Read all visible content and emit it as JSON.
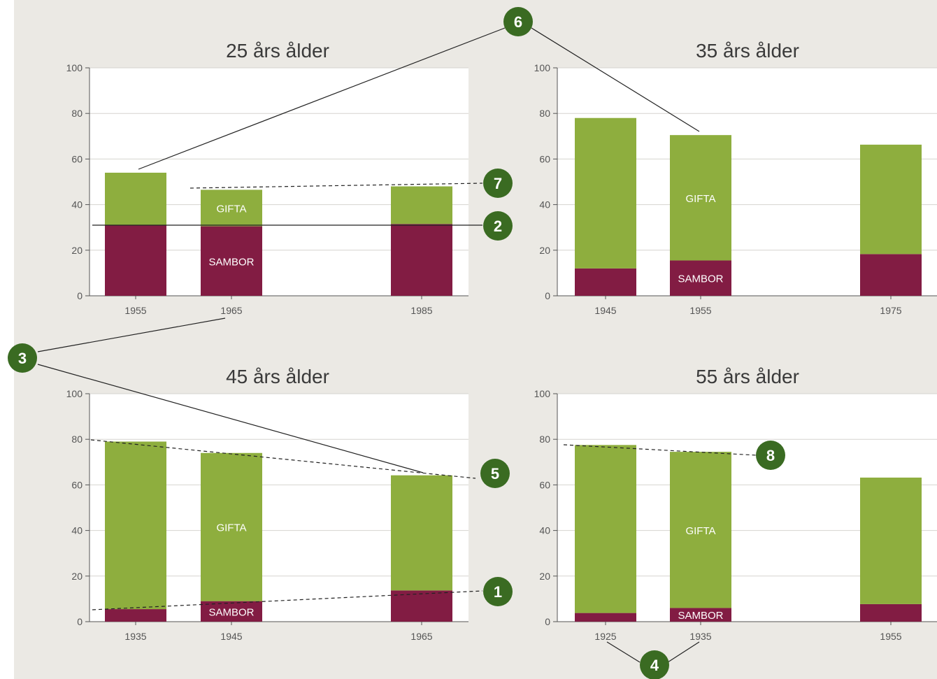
{
  "colors": {
    "background": "#ebe9e4",
    "married": "#8eae3e",
    "cohabiting": "#821c43",
    "badge": "#3a6b22"
  },
  "bar_labels": {
    "married": "GIFTA",
    "cohabiting": "SAMBOR"
  },
  "chart_data": [
    {
      "type": "bar",
      "stacked": true,
      "title": "25 års ålder",
      "categories": [
        "1955",
        "1965",
        "1985"
      ],
      "ylim": [
        0,
        100
      ],
      "yticks": [
        "0",
        "20",
        "40",
        "60",
        "80",
        "100"
      ],
      "grid": true,
      "series": [
        {
          "name": "SAMBOR",
          "values": [
            31,
            30.5,
            31.5
          ]
        },
        {
          "name": "GIFTA",
          "values": [
            23,
            16,
            16.5
          ]
        }
      ]
    },
    {
      "type": "bar",
      "stacked": true,
      "title": "35 års ålder",
      "categories": [
        "1945",
        "1955",
        "1975"
      ],
      "ylim": [
        0,
        100
      ],
      "yticks": [
        "0",
        "20",
        "40",
        "60",
        "80",
        "100"
      ],
      "grid": true,
      "series": [
        {
          "name": "SAMBOR",
          "values": [
            12,
            15.5,
            18.3
          ]
        },
        {
          "name": "GIFTA",
          "values": [
            66,
            55,
            48
          ]
        }
      ]
    },
    {
      "type": "bar",
      "stacked": true,
      "title": "45 års ålder",
      "categories": [
        "1935",
        "1945",
        "1965"
      ],
      "ylim": [
        0,
        100
      ],
      "yticks": [
        "0",
        "20",
        "40",
        "60",
        "80",
        "100"
      ],
      "grid": true,
      "series": [
        {
          "name": "SAMBOR",
          "values": [
            5.5,
            9,
            13.7
          ]
        },
        {
          "name": "GIFTA",
          "values": [
            73.5,
            65,
            50.5
          ]
        }
      ]
    },
    {
      "type": "bar",
      "stacked": true,
      "title": "55 års ålder",
      "categories": [
        "1925",
        "1935",
        "1955"
      ],
      "ylim": [
        0,
        100
      ],
      "yticks": [
        "0",
        "20",
        "40",
        "60",
        "80",
        "100"
      ],
      "grid": true,
      "series": [
        {
          "name": "SAMBOR",
          "values": [
            3.8,
            6,
            7.7
          ]
        },
        {
          "name": "GIFTA",
          "values": [
            73.7,
            68.5,
            55.5
          ]
        }
      ]
    }
  ],
  "annotations": [
    {
      "label": "1"
    },
    {
      "label": "2"
    },
    {
      "label": "3"
    },
    {
      "label": "4"
    },
    {
      "label": "5"
    },
    {
      "label": "6"
    },
    {
      "label": "7"
    },
    {
      "label": "8"
    }
  ]
}
